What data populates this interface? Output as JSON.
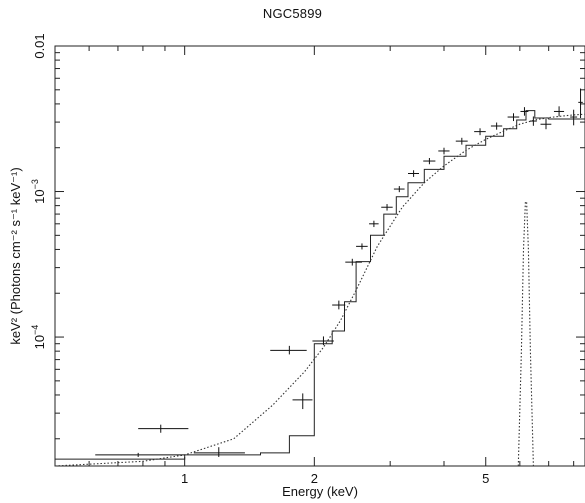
{
  "chart_data": {
    "type": "line",
    "title": "NGC5899",
    "xlabel": "Energy (keV)",
    "ylabel": "keV² (Photons cm⁻² s⁻¹ keV⁻¹)",
    "xscale": "log",
    "yscale": "log",
    "xlim": [
      0.5,
      8.5
    ],
    "ylim": [
      1.3e-05,
      0.01
    ],
    "x_ticks": [
      {
        "value": 1,
        "label": "1"
      },
      {
        "value": 2,
        "label": "2"
      },
      {
        "value": 5,
        "label": "5"
      }
    ],
    "y_ticks": [
      {
        "value": 0.01,
        "mantissa": "0.01",
        "exp": ""
      },
      {
        "value": 0.001,
        "mantissa": "10",
        "exp": "−3"
      },
      {
        "value": 0.0001,
        "mantissa": "10",
        "exp": "−4"
      }
    ],
    "grid": false,
    "series": [
      {
        "style": "error-crosses",
        "points": [
          {
            "x": 0.78,
            "xlo": 0.62,
            "xhi": 1.0,
            "y": 1.55e-05,
            "ylo": 1.5e-05,
            "yhi": 1.6e-05
          },
          {
            "x": 0.88,
            "xlo": 0.78,
            "xhi": 1.02,
            "y": 2.35e-05,
            "ylo": 2.2e-05,
            "yhi": 2.5e-05
          },
          {
            "x": 1.2,
            "xlo": 1.05,
            "xhi": 1.38,
            "y": 1.6e-05,
            "ylo": 1.5e-05,
            "yhi": 1.75e-05
          },
          {
            "x": 1.75,
            "xlo": 1.58,
            "xhi": 1.92,
            "y": 8.1e-05,
            "ylo": 7.6e-05,
            "yhi": 8.7e-05
          },
          {
            "x": 1.88,
            "xlo": 1.78,
            "xhi": 1.98,
            "y": 3.7e-05,
            "ylo": 3.2e-05,
            "yhi": 4.1e-05
          },
          {
            "x": 2.1,
            "xlo": 1.98,
            "xhi": 2.22,
            "y": 9.4e-05,
            "ylo": 8.8e-05,
            "yhi": 0.000101
          },
          {
            "x": 2.28,
            "xlo": 2.2,
            "xhi": 2.36,
            "y": 0.000166,
            "ylo": 0.000155,
            "yhi": 0.000178
          },
          {
            "x": 2.45,
            "xlo": 2.36,
            "xhi": 2.58,
            "y": 0.000327,
            "ylo": 0.00031,
            "yhi": 0.000345
          },
          {
            "x": 2.58,
            "xlo": 2.5,
            "xhi": 2.66,
            "y": 0.00042,
            "ylo": 0.0004,
            "yhi": 0.00044
          },
          {
            "x": 2.75,
            "xlo": 2.68,
            "xhi": 2.82,
            "y": 0.0006,
            "ylo": 0.00057,
            "yhi": 0.00063
          },
          {
            "x": 2.95,
            "xlo": 2.86,
            "xhi": 3.04,
            "y": 0.00078,
            "ylo": 0.00074,
            "yhi": 0.00082
          },
          {
            "x": 3.15,
            "xlo": 3.06,
            "xhi": 3.24,
            "y": 0.00104,
            "ylo": 0.00099,
            "yhi": 0.00109
          },
          {
            "x": 3.4,
            "xlo": 3.3,
            "xhi": 3.5,
            "y": 0.00133,
            "ylo": 0.00126,
            "yhi": 0.0014
          },
          {
            "x": 3.7,
            "xlo": 3.58,
            "xhi": 3.82,
            "y": 0.00162,
            "ylo": 0.00154,
            "yhi": 0.0017
          },
          {
            "x": 4.0,
            "xlo": 3.88,
            "xhi": 4.12,
            "y": 0.0019,
            "ylo": 0.0018,
            "yhi": 0.002
          },
          {
            "x": 4.4,
            "xlo": 4.26,
            "xhi": 4.54,
            "y": 0.00222,
            "ylo": 0.0021,
            "yhi": 0.00234
          },
          {
            "x": 4.85,
            "xlo": 4.7,
            "xhi": 5.0,
            "y": 0.00258,
            "ylo": 0.00244,
            "yhi": 0.00272
          },
          {
            "x": 5.3,
            "xlo": 5.14,
            "xhi": 5.46,
            "y": 0.00282,
            "ylo": 0.00266,
            "yhi": 0.00298
          },
          {
            "x": 5.8,
            "xlo": 5.62,
            "xhi": 5.98,
            "y": 0.00325,
            "ylo": 0.00305,
            "yhi": 0.00345
          },
          {
            "x": 6.15,
            "xlo": 6.02,
            "xhi": 6.28,
            "y": 0.00355,
            "ylo": 0.00332,
            "yhi": 0.0038
          },
          {
            "x": 6.45,
            "xlo": 6.33,
            "xhi": 6.57,
            "y": 0.00305,
            "ylo": 0.00283,
            "yhi": 0.00328
          },
          {
            "x": 6.9,
            "xlo": 6.7,
            "xhi": 7.1,
            "y": 0.0029,
            "ylo": 0.00268,
            "yhi": 0.00315
          },
          {
            "x": 7.4,
            "xlo": 7.2,
            "xhi": 7.6,
            "y": 0.00355,
            "ylo": 0.00328,
            "yhi": 0.00385
          },
          {
            "x": 8.0,
            "xlo": 7.85,
            "xhi": 8.15,
            "y": 0.00325,
            "ylo": 0.00285,
            "yhi": 0.00365
          },
          {
            "x": 8.3,
            "xlo": 8.2,
            "xhi": 8.4,
            "y": 0.0041,
            "ylo": 0.0032,
            "yhi": 0.0051
          }
        ]
      },
      {
        "style": "step-solid",
        "x": [
          0.5,
          1.0,
          1.5,
          1.75,
          2.0,
          2.2,
          2.35,
          2.5,
          2.7,
          2.9,
          3.1,
          3.3,
          3.6,
          4.0,
          4.5,
          5.0,
          5.5,
          5.9,
          6.2,
          6.5,
          7.0,
          8.5
        ],
        "y": [
          1.45e-05,
          1.55e-05,
          1.6e-05,
          2.1e-05,
          9e-05,
          0.00011,
          0.000175,
          0.00033,
          0.0005,
          0.0007,
          0.00092,
          0.00115,
          0.00142,
          0.00175,
          0.00208,
          0.0024,
          0.0027,
          0.0031,
          0.0036,
          0.0032,
          0.00315,
          0.00335
        ]
      },
      {
        "style": "dotted",
        "x": [
          0.5,
          0.8,
          1.0,
          1.3,
          1.6,
          1.9,
          2.1,
          2.3,
          2.5,
          2.8,
          3.2,
          3.6,
          4.0,
          4.5,
          5.0,
          5.5,
          6.0,
          6.5,
          7.0,
          7.5,
          8.0,
          8.5
        ],
        "y": [
          1.3e-05,
          1.4e-05,
          1.55e-05,
          2e-05,
          3.4e-05,
          5.8e-05,
          8.5e-05,
          0.00013,
          0.00021,
          0.00042,
          0.00078,
          0.00115,
          0.0015,
          0.00192,
          0.00228,
          0.0026,
          0.0029,
          0.0031,
          0.00322,
          0.0033,
          0.00336,
          0.0034
        ]
      },
      {
        "style": "dotted-line-peak",
        "x": [
          5.95,
          6.05,
          6.12,
          6.18,
          6.22,
          6.28,
          6.35,
          6.45
        ],
        "y": [
          1.3e-05,
          8e-05,
          0.0004,
          0.00085,
          0.00085,
          0.0004,
          8e-05,
          1.3e-05
        ]
      }
    ]
  }
}
